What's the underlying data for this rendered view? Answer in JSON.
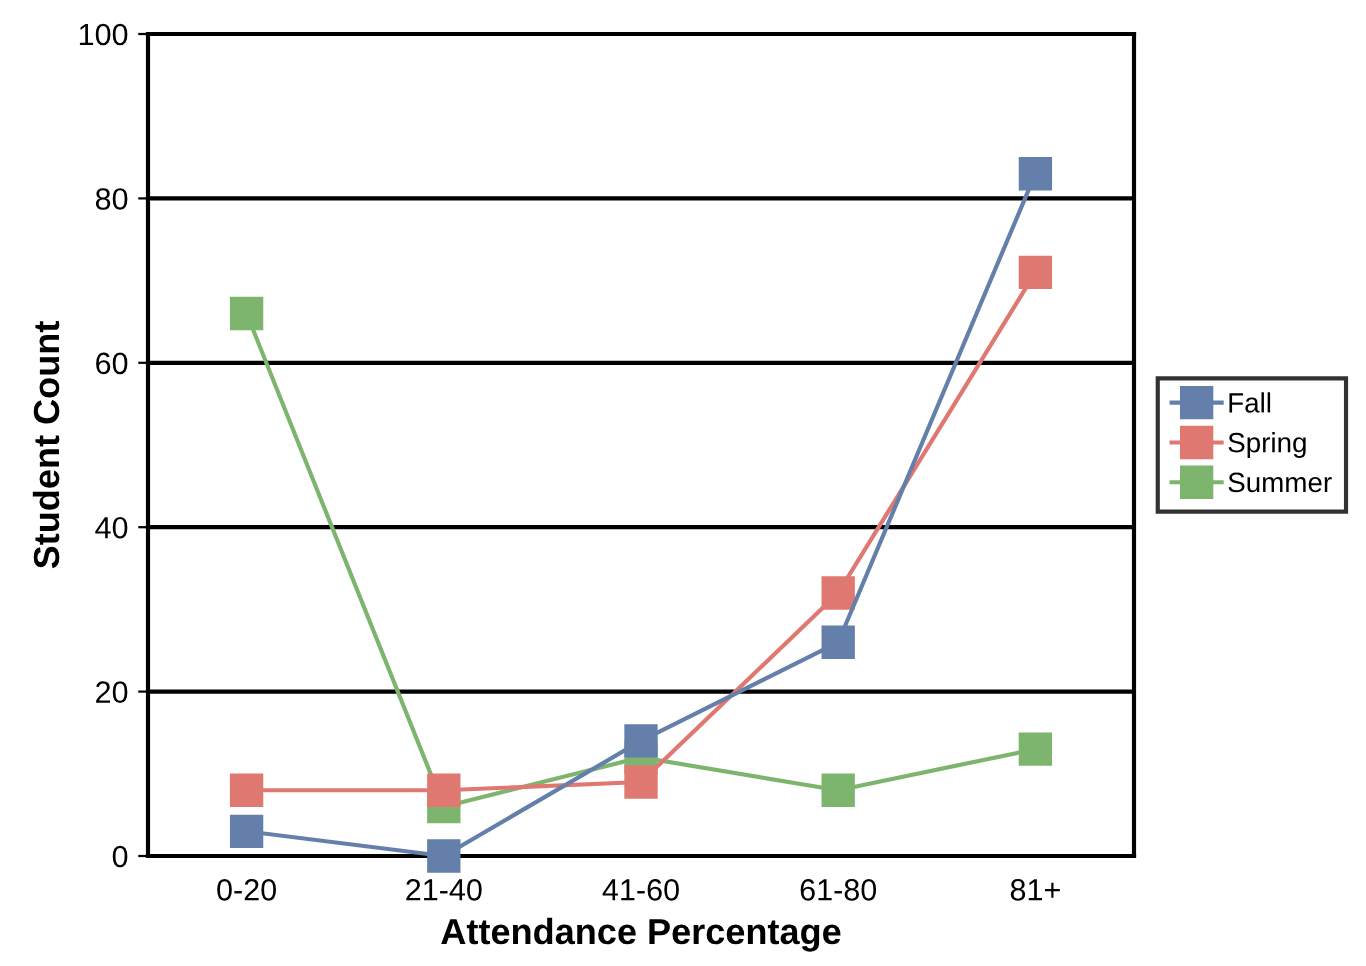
{
  "chart_data": {
    "type": "line",
    "xlabel": "Attendance Percentage",
    "ylabel": "Student Count",
    "categories": [
      "0-20",
      "21-40",
      "41-60",
      "61-80",
      "81+"
    ],
    "series": [
      {
        "name": "Fall",
        "color": "#6480aa",
        "values": [
          3,
          0,
          14,
          26,
          83
        ]
      },
      {
        "name": "Spring",
        "color": "#e07872",
        "values": [
          8,
          8,
          9,
          32,
          71
        ]
      },
      {
        "name": "Summer",
        "color": "#7db46e",
        "values": [
          66,
          6,
          12,
          8,
          13
        ]
      }
    ],
    "ylim": [
      0,
      100
    ],
    "yticks": [
      0,
      20,
      40,
      60,
      80,
      100
    ],
    "grid": "y",
    "legend": "right",
    "marker": "square",
    "line_style": "solid"
  }
}
